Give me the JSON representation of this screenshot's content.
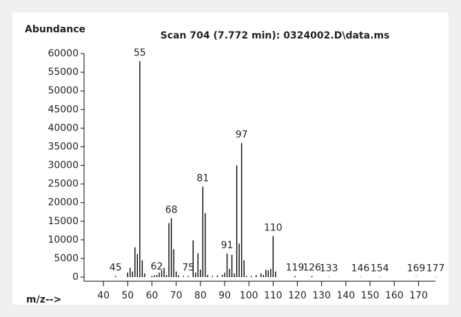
{
  "chart_data": {
    "type": "bar",
    "title": "Scan 704 (7.772 min): 0324002.D\\data.ms",
    "ylabel": "Abundance",
    "xlabel": "m/z-->",
    "x": [
      45,
      50,
      51,
      52,
      53,
      54,
      55,
      56,
      57,
      60,
      61,
      62,
      63,
      64,
      65,
      66,
      67,
      68,
      69,
      70,
      71,
      73,
      75,
      77,
      78,
      79,
      80,
      81,
      82,
      83,
      85,
      87,
      89,
      90,
      91,
      92,
      93,
      94,
      95,
      96,
      97,
      98,
      99,
      101,
      103,
      105,
      106,
      107,
      108,
      109,
      110,
      111,
      119,
      126,
      133,
      146,
      154,
      169,
      177
    ],
    "values": [
      300,
      1200,
      2500,
      1500,
      8000,
      6200,
      58000,
      4500,
      1000,
      300,
      500,
      600,
      1200,
      1800,
      2500,
      600,
      14500,
      15800,
      7500,
      1500,
      500,
      300,
      300,
      9900,
      1200,
      6400,
      2000,
      24300,
      17200,
      600,
      300,
      400,
      600,
      1200,
      6300,
      2200,
      6000,
      1000,
      30000,
      9000,
      36000,
      4500,
      300,
      300,
      600,
      1000,
      600,
      2000,
      1800,
      2200,
      11000,
      1500,
      300,
      300,
      100,
      100,
      100,
      100,
      100
    ],
    "annotations": [
      45,
      55,
      62,
      68,
      75,
      81,
      91,
      97,
      110,
      119,
      126,
      133,
      146,
      154,
      169,
      177
    ],
    "color": "#000000",
    "xlim": [
      32,
      177
    ],
    "xticks": [
      40,
      50,
      60,
      70,
      80,
      90,
      100,
      110,
      120,
      130,
      140,
      150,
      160,
      170
    ],
    "ylim": [
      0,
      60000
    ],
    "yticks": [
      0,
      5000,
      10000,
      15000,
      20000,
      25000,
      30000,
      35000,
      40000,
      45000,
      50000,
      55000,
      60000
    ]
  }
}
